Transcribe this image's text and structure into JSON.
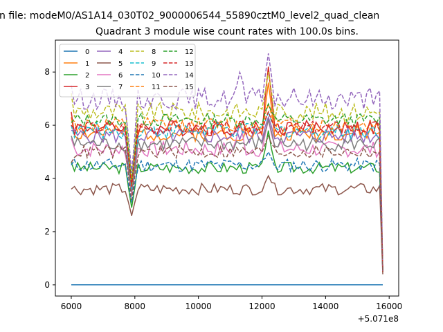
{
  "figure": {
    "suptitle": "n file: modeM0/AS1A14_030T02_9000006544_55890cztM0_level2_quad_clean",
    "offset_label": "+5.071e8"
  },
  "chart_data": {
    "type": "line",
    "title": "Quadrant 3 module wise count rates with 100.0s bins.",
    "xlabel": "",
    "ylabel": "",
    "x_offset": 507100000,
    "xlim": [
      5500,
      16300
    ],
    "ylim": [
      -0.42,
      9.2
    ],
    "xticks": [
      6000,
      8000,
      10000,
      12000,
      14000,
      16000
    ],
    "xtick_labels": [
      "6000",
      "8000",
      "10000",
      "12000",
      "14000",
      "16000"
    ],
    "yticks": [
      0,
      2,
      4,
      6,
      8
    ],
    "ytick_labels": [
      "0",
      "2",
      "4",
      "6",
      "8"
    ],
    "grid": false,
    "legend": {
      "placement": "top-left",
      "columns": 4
    },
    "x_start": 6000,
    "x_step": 100,
    "n_points": 99,
    "series": [
      {
        "name": "0",
        "color": "#1f77b4",
        "dash": "solid",
        "level": 0.0,
        "noise": 0.0,
        "seed": 1,
        "start": 0.0,
        "dip": 0.0,
        "spike": 0.0,
        "end": 0.0
      },
      {
        "name": "1",
        "color": "#ff7f0e",
        "dash": "solid",
        "level": 5.7,
        "noise": 0.3,
        "seed": 2,
        "start": 6.3,
        "dip": 3.6,
        "spike": 7.6,
        "end": 0.5
      },
      {
        "name": "2",
        "color": "#2ca02c",
        "dash": "solid",
        "level": 4.4,
        "noise": 0.22,
        "seed": 3,
        "start": 4.6,
        "dip": 2.9,
        "spike": 5.8,
        "end": 0.5
      },
      {
        "name": "3",
        "color": "#d62728",
        "dash": "solid",
        "level": 5.9,
        "noise": 0.3,
        "seed": 4,
        "start": 6.5,
        "dip": 3.7,
        "spike": 8.2,
        "end": 0.5
      },
      {
        "name": "4",
        "color": "#9467bd",
        "dash": "solid",
        "level": 5.6,
        "noise": 0.3,
        "seed": 5,
        "start": 5.8,
        "dip": 3.5,
        "spike": 6.3,
        "end": 0.5
      },
      {
        "name": "5",
        "color": "#8c564b",
        "dash": "solid",
        "level": 3.6,
        "noise": 0.22,
        "seed": 6,
        "start": 3.6,
        "dip": 2.6,
        "spike": 4.1,
        "end": 0.4
      },
      {
        "name": "6",
        "color": "#e377c2",
        "dash": "solid",
        "level": 5.1,
        "noise": 0.3,
        "seed": 7,
        "start": 5.5,
        "dip": 3.4,
        "spike": 6.2,
        "end": 0.5
      },
      {
        "name": "7",
        "color": "#7f7f7f",
        "dash": "solid",
        "level": 5.3,
        "noise": 0.28,
        "seed": 8,
        "start": 5.6,
        "dip": 3.5,
        "spike": 6.2,
        "end": 0.5
      },
      {
        "name": "8",
        "color": "#bcbd22",
        "dash": "dashed",
        "level": 6.5,
        "noise": 0.35,
        "seed": 9,
        "start": 7.2,
        "dip": 4.0,
        "spike": 8.0,
        "end": 0.6
      },
      {
        "name": "9",
        "color": "#17becf",
        "dash": "dashed",
        "level": 5.8,
        "noise": 0.3,
        "seed": 10,
        "start": 6.0,
        "dip": 3.6,
        "spike": 6.5,
        "end": 0.5
      },
      {
        "name": "10",
        "color": "#1f77b4",
        "dash": "dashed",
        "level": 4.5,
        "noise": 0.25,
        "seed": 11,
        "start": 4.5,
        "dip": 3.1,
        "spike": 5.0,
        "end": 0.5
      },
      {
        "name": "11",
        "color": "#ff7f0e",
        "dash": "dashed",
        "level": 6.0,
        "noise": 0.3,
        "seed": 12,
        "start": 6.2,
        "dip": 3.7,
        "spike": 6.8,
        "end": 0.5
      },
      {
        "name": "12",
        "color": "#2ca02c",
        "dash": "dashed",
        "level": 6.2,
        "noise": 0.25,
        "seed": 13,
        "start": 6.1,
        "dip": 3.8,
        "spike": 6.8,
        "end": 0.5
      },
      {
        "name": "13",
        "color": "#d62728",
        "dash": "dashed",
        "level": 5.9,
        "noise": 0.25,
        "seed": 14,
        "start": 6.0,
        "dip": 3.7,
        "spike": 6.5,
        "end": 0.5
      },
      {
        "name": "14",
        "color": "#9467bd",
        "dash": "dashed",
        "level": 7.0,
        "noise": 0.4,
        "seed": 15,
        "start": 7.5,
        "dip": 4.2,
        "spike": 8.7,
        "end": 0.5
      },
      {
        "name": "15",
        "color": "#8c564b",
        "dash": "dashed",
        "level": 5.0,
        "noise": 0.25,
        "seed": 16,
        "start": 4.6,
        "dip": 3.2,
        "spike": 5.6,
        "end": 0.5
      }
    ]
  }
}
